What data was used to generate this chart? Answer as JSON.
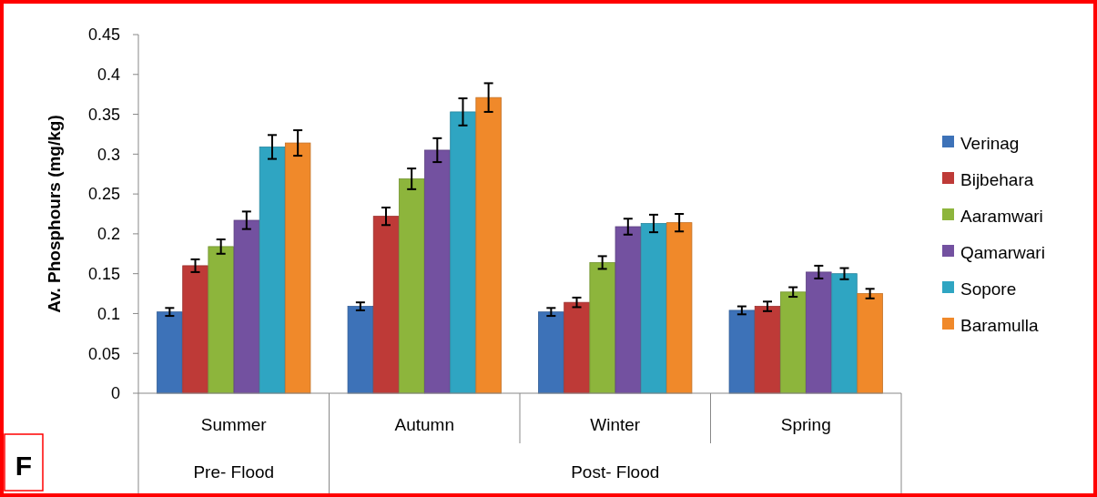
{
  "chart_data": {
    "type": "bar",
    "ylabel": "Av. Phosphours (mg/kg)",
    "categories": [
      "Summer",
      "Autumn",
      "Winter",
      "Spring"
    ],
    "series": [
      {
        "name": "Verinag",
        "color": "#3d72b8",
        "values": [
          0.102,
          0.109,
          0.102,
          0.104
        ],
        "errors": [
          0.005,
          0.005,
          0.005,
          0.005
        ]
      },
      {
        "name": "Bijbehara",
        "color": "#be3a37",
        "values": [
          0.16,
          0.222,
          0.114,
          0.109
        ],
        "errors": [
          0.008,
          0.011,
          0.006,
          0.006
        ]
      },
      {
        "name": "Aaramwari",
        "color": "#8db53c",
        "values": [
          0.184,
          0.269,
          0.164,
          0.127
        ],
        "errors": [
          0.009,
          0.013,
          0.008,
          0.006
        ]
      },
      {
        "name": "Qamarwari",
        "color": "#7351a0",
        "values": [
          0.217,
          0.305,
          0.209,
          0.152
        ],
        "errors": [
          0.011,
          0.015,
          0.01,
          0.008
        ]
      },
      {
        "name": "Sopore",
        "color": "#2fa5c2",
        "values": [
          0.309,
          0.353,
          0.213,
          0.15
        ],
        "errors": [
          0.015,
          0.017,
          0.011,
          0.007
        ]
      },
      {
        "name": "Baramulla",
        "color": "#f0892a",
        "values": [
          0.314,
          0.371,
          0.214,
          0.125
        ],
        "errors": [
          0.016,
          0.018,
          0.011,
          0.006
        ]
      }
    ],
    "ylim": [
      0,
      0.45
    ],
    "yticks": [
      0,
      0.05,
      0.1,
      0.15,
      0.2,
      0.25,
      0.3,
      0.35,
      0.4,
      0.45
    ],
    "grid": false,
    "legend": "right",
    "annotations": [
      "Pre- Flood",
      "Post- Flood",
      "F"
    ]
  }
}
